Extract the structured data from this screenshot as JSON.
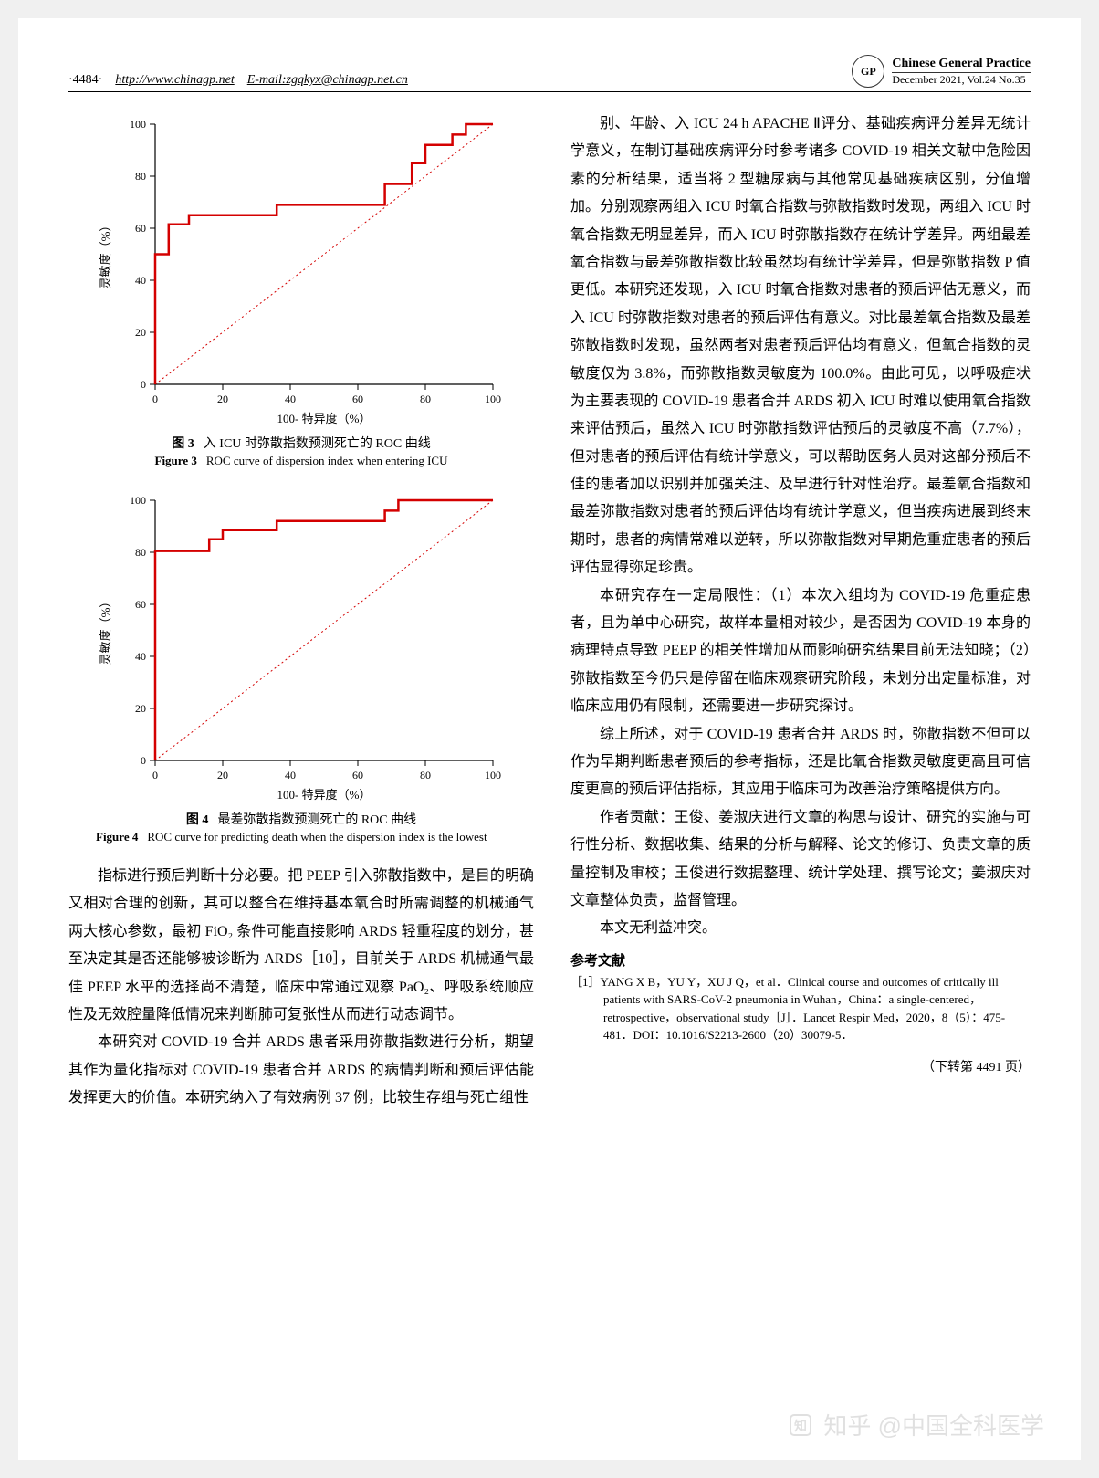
{
  "header": {
    "page_number": "·4484·",
    "url": "http://www.chinagp.net",
    "email_label": "E-mail:",
    "email": "zgqkyx@chinagp.net.cn",
    "logo_text": "GP",
    "journal_title": "Chinese General Practice",
    "issue_line": "December  2021, Vol.24  No.35"
  },
  "figure3": {
    "type": "line",
    "caption_cn_label": "图 3",
    "caption_cn": "入 ICU 时弥散指数预测死亡的 ROC 曲线",
    "caption_en_label": "Figure 3",
    "caption_en": "ROC curve of dispersion index when entering ICU",
    "xlabel": "100- 特异度（%）",
    "ylabel": "灵敏度（%）",
    "xlim": [
      0,
      100
    ],
    "ylim": [
      0,
      100
    ],
    "xticks": [
      0,
      20,
      40,
      60,
      80,
      100
    ],
    "yticks": [
      0,
      20,
      40,
      60,
      80,
      100
    ],
    "label_fontsize": 13,
    "tick_fontsize": 12,
    "background_color": "#ffffff",
    "axis_color": "#000000",
    "line_color": "#d40000",
    "line_width": 2.5,
    "diag_color": "#d40000",
    "diag_dash": "2,3",
    "diag_width": 1,
    "roc_points": [
      [
        0,
        0
      ],
      [
        0,
        50
      ],
      [
        4,
        50
      ],
      [
        4,
        61.5
      ],
      [
        10,
        61.5
      ],
      [
        10,
        65
      ],
      [
        36,
        65
      ],
      [
        36,
        69
      ],
      [
        68,
        69
      ],
      [
        68,
        77
      ],
      [
        76,
        77
      ],
      [
        76,
        85
      ],
      [
        80,
        85
      ],
      [
        80,
        92
      ],
      [
        88,
        92
      ],
      [
        88,
        96
      ],
      [
        92,
        96
      ],
      [
        92,
        100
      ],
      [
        100,
        100
      ]
    ]
  },
  "figure4": {
    "type": "line",
    "caption_cn_label": "图 4",
    "caption_cn": "最差弥散指数预测死亡的 ROC 曲线",
    "caption_en_label": "Figure 4",
    "caption_en": "ROC curve for predicting death when the dispersion index is the lowest",
    "xlabel": "100- 特异度（%）",
    "ylabel": "灵敏度（%）",
    "xlim": [
      0,
      100
    ],
    "ylim": [
      0,
      100
    ],
    "xticks": [
      0,
      20,
      40,
      60,
      80,
      100
    ],
    "yticks": [
      0,
      20,
      40,
      60,
      80,
      100
    ],
    "label_fontsize": 13,
    "tick_fontsize": 12,
    "background_color": "#ffffff",
    "axis_color": "#000000",
    "line_color": "#d40000",
    "line_width": 2.5,
    "diag_color": "#d40000",
    "diag_dash": "2,3",
    "diag_width": 1,
    "roc_points": [
      [
        0,
        0
      ],
      [
        0,
        80.5
      ],
      [
        16,
        80.5
      ],
      [
        16,
        85
      ],
      [
        20,
        85
      ],
      [
        20,
        88.5
      ],
      [
        36,
        88.5
      ],
      [
        36,
        92
      ],
      [
        68,
        92
      ],
      [
        68,
        96
      ],
      [
        72,
        96
      ],
      [
        72,
        100
      ],
      [
        100,
        100
      ]
    ]
  },
  "left_paragraphs": [
    "指标进行预后判断十分必要。把 PEEP 引入弥散指数中，是目的明确又相对合理的创新，其可以整合在维持基本氧合时所需调整的机械通气两大核心参数，最初 FiO₂ 条件可能直接影响 ARDS 轻重程度的划分，甚至决定其是否还能够被诊断为 ARDS［10］，目前关于 ARDS 机械通气最佳 PEEP 水平的选择尚不清楚，临床中常通过观察 PaO₂、呼吸系统顺应性及无效腔量降低情况来判断肺可复张性从而进行动态调节。",
    "本研究对 COVID-19 合并 ARDS 患者采用弥散指数进行分析，期望其作为量化指标对 COVID-19 患者合并 ARDS 的病情判断和预后评估能发挥更大的价值。本研究纳入了有效病例 37 例，比较生存组与死亡组性"
  ],
  "right_paragraphs": [
    "别、年龄、入 ICU 24 h APACHE Ⅱ评分、基础疾病评分差异无统计学意义，在制订基础疾病评分时参考诸多 COVID-19 相关文献中危险因素的分析结果，适当将 2 型糖尿病与其他常见基础疾病区别，分值增加。分别观察两组入 ICU 时氧合指数与弥散指数时发现，两组入 ICU 时氧合指数无明显差异，而入 ICU 时弥散指数存在统计学差异。两组最差氧合指数与最差弥散指数比较虽然均有统计学差异，但是弥散指数 P 值更低。本研究还发现，入 ICU 时氧合指数对患者的预后评估无意义，而入 ICU 时弥散指数对患者的预后评估有意义。对比最差氧合指数及最差弥散指数时发现，虽然两者对患者预后评估均有意义，但氧合指数的灵敏度仅为 3.8%，而弥散指数灵敏度为 100.0%。由此可见，以呼吸症状为主要表现的 COVID-19 患者合并 ARDS 初入 ICU 时难以使用氧合指数来评估预后，虽然入 ICU 时弥散指数评估预后的灵敏度不高（7.7%），但对患者的预后评估有统计学意义，可以帮助医务人员对这部分预后不佳的患者加以识别并加强关注、及早进行针对性治疗。最差氧合指数和最差弥散指数对患者的预后评估均有统计学意义，但当疾病进展到终末期时，患者的病情常难以逆转，所以弥散指数对早期危重症患者的预后评估显得弥足珍贵。",
    "本研究存在一定局限性：（1）本次入组均为 COVID-19 危重症患者，且为单中心研究，故样本量相对较少，是否因为 COVID-19 本身的病理特点导致 PEEP 的相关性增加从而影响研究结果目前无法知晓；（2）弥散指数至今仍只是停留在临床观察研究阶段，未划分出定量标准，对临床应用仍有限制，还需要进一步研究探讨。",
    "综上所述，对于 COVID-19 患者合并 ARDS 时，弥散指数不但可以作为早期判断患者预后的参考指标，还是比氧合指数灵敏度更高且可信度更高的预后评估指标，其应用于临床可为改善治疗策略提供方向。",
    "作者贡献：王俊、姜淑庆进行文章的构思与设计、研究的实施与可行性分析、数据收集、结果的分析与解释、论文的修订、负责文章的质量控制及审校；王俊进行数据整理、统计学处理、撰写论文；姜淑庆对文章整体负责，监督管理。",
    "本文无利益冲突。"
  ],
  "references": {
    "heading": "参考文献",
    "items": [
      "［1］YANG X B，YU Y，XU J Q，et al．Clinical course and outcomes of critically ill patients with SARS-CoV-2 pneumonia in Wuhan，China：a single-centered，retrospective，observational study［J］．Lancet Respir Med，2020，8（5）：475-481．DOI：10.1016/S2213-2600（20）30079-5．"
    ]
  },
  "continued_note": "（下转第 4491 页）",
  "watermark": "知乎  @中国全科医学"
}
